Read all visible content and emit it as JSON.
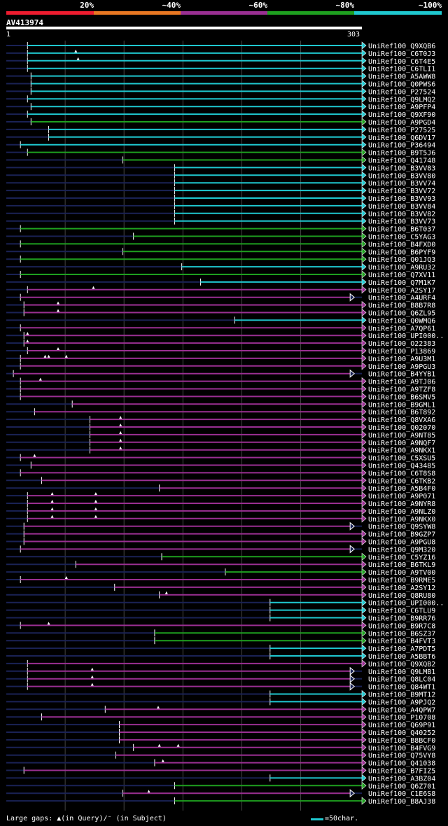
{
  "legend": {
    "bins": [
      {
        "label": "20%",
        "color": "#ee1c2f"
      },
      {
        "label": "~40%",
        "color": "#e87722"
      },
      {
        "label": "~60%",
        "color": "#9a2f92"
      },
      {
        "label": "~80%",
        "color": "#1ea01f"
      },
      {
        "label": "~100%",
        "color": "#1fc8d0"
      }
    ]
  },
  "query": {
    "id": "AV413974",
    "start": "1",
    "end": "303",
    "length": 303
  },
  "colors": {
    "cyan": "#1fc8d0",
    "green": "#1ea01f",
    "purple": "#9a2f92",
    "navy": "#1a2255",
    "grid": "#444444"
  },
  "chart_data": {
    "type": "alignment",
    "x_units": "query position (aa)",
    "xlim": [
      1,
      303
    ],
    "rows": [
      {
        "name": "UniRef100_Q9XQB6",
        "color": "cyan",
        "start": 19,
        "end": 303,
        "arrow": "right"
      },
      {
        "name": "UniRef100_C6T0J3",
        "color": "cyan",
        "start": 19,
        "end": 303,
        "arrow": "right",
        "marks": [
          60
        ]
      },
      {
        "name": "UniRef100_C6T4E5",
        "color": "cyan",
        "start": 19,
        "end": 303,
        "arrow": "right",
        "marks": [
          62
        ]
      },
      {
        "name": "UniRef100_C6TLI1",
        "color": "cyan",
        "start": 19,
        "end": 303,
        "arrow": "right"
      },
      {
        "name": "UniRef100_A5AWW8",
        "color": "cyan",
        "start": 22,
        "end": 303,
        "arrow": "right"
      },
      {
        "name": "UniRef100_Q0PWS6",
        "color": "cyan",
        "start": 22,
        "end": 303,
        "arrow": "right"
      },
      {
        "name": "UniRef100_P27524",
        "color": "cyan",
        "start": 22,
        "end": 303,
        "arrow": "right"
      },
      {
        "name": "UniRef100_Q9LMQ2",
        "color": "cyan",
        "start": 19,
        "end": 303,
        "arrow": "right"
      },
      {
        "name": "UniRef100_A9PFP4",
        "color": "cyan",
        "start": 22,
        "end": 303,
        "arrow": "right"
      },
      {
        "name": "UniRef100_Q9XF90",
        "color": "cyan",
        "start": 19,
        "end": 303,
        "arrow": "right"
      },
      {
        "name": "UniRef100_A9PGD4",
        "color": "green",
        "start": 22,
        "end": 303,
        "arrow": "right"
      },
      {
        "name": "UniRef100_P27525",
        "color": "cyan",
        "start": 37,
        "end": 303,
        "arrow": "right"
      },
      {
        "name": "UniRef100_Q6DV17",
        "color": "cyan",
        "start": 37,
        "end": 303,
        "arrow": "right"
      },
      {
        "name": "UniRef100_P36494",
        "color": "cyan",
        "start": 13,
        "end": 303,
        "arrow": "right"
      },
      {
        "name": "UniRef100_B9T5J6",
        "color": "green",
        "start": 19,
        "end": 303,
        "arrow": "right"
      },
      {
        "name": "UniRef100_Q41748",
        "color": "green",
        "start": 100,
        "end": 303,
        "arrow": "right"
      },
      {
        "name": "UniRef100_B3VV83",
        "color": "cyan",
        "start": 144,
        "end": 303,
        "arrow": "right"
      },
      {
        "name": "UniRef100_B3VV80",
        "color": "cyan",
        "start": 144,
        "end": 303,
        "arrow": "right"
      },
      {
        "name": "UniRef100_B3VV74",
        "color": "cyan",
        "start": 144,
        "end": 303,
        "arrow": "right"
      },
      {
        "name": "UniRef100_B3VV72",
        "color": "cyan",
        "start": 144,
        "end": 303,
        "arrow": "right"
      },
      {
        "name": "UniRef100_B3VV93",
        "color": "cyan",
        "start": 144,
        "end": 303,
        "arrow": "right"
      },
      {
        "name": "UniRef100_B3VV84",
        "color": "cyan",
        "start": 144,
        "end": 303,
        "arrow": "right"
      },
      {
        "name": "UniRef100_B3VV82",
        "color": "cyan",
        "start": 144,
        "end": 303,
        "arrow": "right"
      },
      {
        "name": "UniRef100_B3VV73",
        "color": "cyan",
        "start": 144,
        "end": 303,
        "arrow": "right"
      },
      {
        "name": "UniRef100_B6T037",
        "color": "green",
        "start": 13,
        "end": 303,
        "arrow": "right"
      },
      {
        "name": "UniRef100_C5YAG3",
        "color": "green",
        "start": 109,
        "end": 303,
        "arrow": "right"
      },
      {
        "name": "UniRef100_B4FXD0",
        "color": "green",
        "start": 13,
        "end": 303,
        "arrow": "right"
      },
      {
        "name": "UniRef100_B6PYF9",
        "color": "green",
        "start": 100,
        "end": 303,
        "arrow": "right"
      },
      {
        "name": "UniRef100_Q01JQ3",
        "color": "green",
        "start": 13,
        "end": 303,
        "arrow": "right"
      },
      {
        "name": "UniRef100_A9RU32",
        "color": "cyan",
        "start": 150,
        "end": 303,
        "arrow": "right"
      },
      {
        "name": "UniRef100_Q7XV11",
        "color": "green",
        "start": 13,
        "end": 303,
        "arrow": "right"
      },
      {
        "name": "UniRef100_Q7M1K7",
        "color": "cyan",
        "start": 166,
        "end": 303,
        "arrow": "right"
      },
      {
        "name": "UniRef100_A2SY17",
        "color": "purple",
        "start": 19,
        "end": 303,
        "arrow": "right",
        "marks": [
          75
        ]
      },
      {
        "name": "UniRef100_A4URF4",
        "color": "purple",
        "start": 13,
        "end": 293,
        "arrow": "right-open"
      },
      {
        "name": "UniRef100_B8B7R8",
        "color": "purple",
        "start": 16,
        "end": 303,
        "arrow": "right",
        "marks": [
          45
        ]
      },
      {
        "name": "UniRef100_Q6ZL95",
        "color": "purple",
        "start": 16,
        "end": 303,
        "arrow": "right",
        "marks": [
          45
        ]
      },
      {
        "name": "UniRef100_Q0WMQ6",
        "color": "cyan",
        "start": 195,
        "end": 303,
        "arrow": "right"
      },
      {
        "name": "UniRef100_A7QP61",
        "color": "purple",
        "start": 13,
        "end": 303,
        "arrow": "right"
      },
      {
        "name": "UniRef100_UPI000..",
        "color": "purple",
        "start": 16,
        "end": 303,
        "arrow": "right",
        "marks": [
          19
        ]
      },
      {
        "name": "UniRef100_O22383",
        "color": "purple",
        "start": 16,
        "end": 303,
        "arrow": "right",
        "marks": [
          19
        ]
      },
      {
        "name": "UniRef100_P13869",
        "color": "purple",
        "start": 19,
        "end": 303,
        "arrow": "right",
        "marks": [
          45
        ]
      },
      {
        "name": "UniRef100_A9U3M1",
        "color": "purple",
        "start": 13,
        "end": 303,
        "arrow": "right",
        "marks": [
          34,
          37,
          52
        ]
      },
      {
        "name": "UniRef100_A9PGU3",
        "color": "purple",
        "start": 13,
        "end": 303,
        "arrow": "right"
      },
      {
        "name": "UniRef100_B4YYB1",
        "color": "purple",
        "start": 7,
        "end": 293,
        "arrow": "right-open"
      },
      {
        "name": "UniRef100_A9TJ06",
        "color": "purple",
        "start": 13,
        "end": 303,
        "arrow": "right",
        "marks": [
          30
        ]
      },
      {
        "name": "UniRef100_A9TZF8",
        "color": "purple",
        "start": 13,
        "end": 303,
        "arrow": "right"
      },
      {
        "name": "UniRef100_B6SMV5",
        "color": "purple",
        "start": 13,
        "end": 303,
        "arrow": "right"
      },
      {
        "name": "UniRef100_B9GML1",
        "color": "purple",
        "start": 57,
        "end": 303,
        "arrow": "right"
      },
      {
        "name": "UniRef100_B6T892",
        "color": "purple",
        "start": 25,
        "end": 303,
        "arrow": "right"
      },
      {
        "name": "UniRef100_Q8VXA6",
        "color": "purple",
        "start": 72,
        "end": 303,
        "arrow": "right",
        "marks": [
          98
        ]
      },
      {
        "name": "UniRef100_Q02070",
        "color": "purple",
        "start": 72,
        "end": 303,
        "arrow": "right",
        "marks": [
          98
        ]
      },
      {
        "name": "UniRef100_A9NT85",
        "color": "purple",
        "start": 72,
        "end": 303,
        "arrow": "right",
        "marks": [
          98
        ]
      },
      {
        "name": "UniRef100_A9NQF7",
        "color": "purple",
        "start": 72,
        "end": 303,
        "arrow": "right",
        "marks": [
          98
        ]
      },
      {
        "name": "UniRef100_A9NKX1",
        "color": "purple",
        "start": 72,
        "end": 303,
        "arrow": "right",
        "marks": [
          98
        ]
      },
      {
        "name": "UniRef100_C5XSU5",
        "color": "purple",
        "start": 13,
        "end": 303,
        "arrow": "right",
        "marks": [
          25
        ]
      },
      {
        "name": "UniRef100_Q43485",
        "color": "purple",
        "start": 22,
        "end": 303,
        "arrow": "right"
      },
      {
        "name": "UniRef100_C6T8S8",
        "color": "purple",
        "start": 13,
        "end": 303,
        "arrow": "right"
      },
      {
        "name": "UniRef100_C6TKB2",
        "color": "purple",
        "start": 31,
        "end": 303,
        "arrow": "right"
      },
      {
        "name": "UniRef100_A5B4F0",
        "color": "purple",
        "start": 131,
        "end": 303,
        "arrow": "right"
      },
      {
        "name": "UniRef100_A9P071",
        "color": "purple",
        "start": 19,
        "end": 303,
        "arrow": "right",
        "marks": [
          40,
          77
        ]
      },
      {
        "name": "UniRef100_A9NYR8",
        "color": "purple",
        "start": 19,
        "end": 303,
        "arrow": "right",
        "marks": [
          40,
          77
        ]
      },
      {
        "name": "UniRef100_A9NLZ0",
        "color": "purple",
        "start": 19,
        "end": 303,
        "arrow": "right",
        "marks": [
          40,
          77
        ]
      },
      {
        "name": "UniRef100_A9NKX0",
        "color": "purple",
        "start": 19,
        "end": 303,
        "arrow": "right",
        "marks": [
          40,
          77
        ]
      },
      {
        "name": "UniRef100_Q9SYW8",
        "color": "purple",
        "start": 16,
        "end": 293,
        "arrow": "right-open"
      },
      {
        "name": "UniRef100_B9GZP7",
        "color": "purple",
        "start": 16,
        "end": 303,
        "arrow": "right"
      },
      {
        "name": "UniRef100_A9PGU8",
        "color": "purple",
        "start": 16,
        "end": 303,
        "arrow": "right"
      },
      {
        "name": "UniRef100_Q9M320",
        "color": "purple",
        "start": 13,
        "end": 293,
        "arrow": "right-open"
      },
      {
        "name": "UniRef100_C5YZ16",
        "color": "green",
        "start": 133,
        "end": 303,
        "arrow": "right"
      },
      {
        "name": "UniRef100_B6TKL9",
        "color": "purple",
        "start": 60,
        "end": 303,
        "arrow": "right"
      },
      {
        "name": "UniRef100_A9TV00",
        "color": "green",
        "start": 187,
        "end": 303,
        "arrow": "right"
      },
      {
        "name": "UniRef100_B9RME5",
        "color": "purple",
        "start": 13,
        "end": 303,
        "arrow": "right",
        "marks": [
          52
        ]
      },
      {
        "name": "UniRef100_A2SY12",
        "color": "purple",
        "start": 93,
        "end": 303,
        "arrow": "right"
      },
      {
        "name": "UniRef100_Q8RU80",
        "color": "purple",
        "start": 131,
        "end": 303,
        "arrow": "right",
        "marks": [
          137
        ]
      },
      {
        "name": "UniRef100_UPI000..",
        "color": "cyan",
        "start": 225,
        "end": 303,
        "arrow": "right"
      },
      {
        "name": "UniRef100_C6TLU9",
        "color": "cyan",
        "start": 225,
        "end": 303,
        "arrow": "right"
      },
      {
        "name": "UniRef100_B9RR76",
        "color": "cyan",
        "start": 225,
        "end": 303,
        "arrow": "right"
      },
      {
        "name": "UniRef100_B9R7C8",
        "color": "purple",
        "start": 13,
        "end": 303,
        "arrow": "right",
        "marks": [
          37
        ]
      },
      {
        "name": "UniRef100_B6SZ37",
        "color": "green",
        "start": 127,
        "end": 303,
        "arrow": "right"
      },
      {
        "name": "UniRef100_B4FVT3",
        "color": "green",
        "start": 127,
        "end": 303,
        "arrow": "right"
      },
      {
        "name": "UniRef100_A7PDT5",
        "color": "cyan",
        "start": 225,
        "end": 303,
        "arrow": "right"
      },
      {
        "name": "UniRef100_A5BBT6",
        "color": "cyan",
        "start": 225,
        "end": 303,
        "arrow": "right"
      },
      {
        "name": "UniRef100_Q9XQB2",
        "color": "purple",
        "start": 19,
        "end": 303,
        "arrow": "right"
      },
      {
        "name": "UniRef100_Q9LMB1",
        "color": "purple",
        "start": 19,
        "end": 293,
        "arrow": "right-open",
        "marks": [
          74
        ]
      },
      {
        "name": "UniRef100_Q8LC04",
        "color": "purple",
        "start": 19,
        "end": 293,
        "arrow": "right-open",
        "marks": [
          74
        ]
      },
      {
        "name": "UniRef100_Q84WT1",
        "color": "purple",
        "start": 19,
        "end": 293,
        "arrow": "right-open",
        "marks": [
          74
        ]
      },
      {
        "name": "UniRef100_B9MT12",
        "color": "cyan",
        "start": 225,
        "end": 303,
        "arrow": "right"
      },
      {
        "name": "UniRef100_A9PJQ2",
        "color": "cyan",
        "start": 225,
        "end": 303,
        "arrow": "right"
      },
      {
        "name": "UniRef100_A4QPW7",
        "color": "purple",
        "start": 85,
        "end": 303,
        "arrow": "right",
        "marks": [
          130
        ]
      },
      {
        "name": "UniRef100_P10708",
        "color": "purple",
        "start": 31,
        "end": 303,
        "arrow": "right"
      },
      {
        "name": "UniRef100_Q69P91",
        "color": "purple",
        "start": 97,
        "end": 303,
        "arrow": "right"
      },
      {
        "name": "UniRef100_Q40252",
        "color": "purple",
        "start": 97,
        "end": 303,
        "arrow": "right"
      },
      {
        "name": "UniRef100_B8BCF0",
        "color": "purple",
        "start": 97,
        "end": 303,
        "arrow": "right"
      },
      {
        "name": "UniRef100_B4FVG9",
        "color": "purple",
        "start": 109,
        "end": 303,
        "arrow": "right",
        "marks": [
          131,
          147
        ]
      },
      {
        "name": "UniRef100_Q75VY8",
        "color": "purple",
        "start": 94,
        "end": 303,
        "arrow": "right"
      },
      {
        "name": "UniRef100_Q41038",
        "color": "purple",
        "start": 127,
        "end": 303,
        "arrow": "right",
        "marks": [
          134
        ]
      },
      {
        "name": "UniRef100_B7FIZ5",
        "color": "purple",
        "start": 16,
        "end": 303,
        "arrow": "right"
      },
      {
        "name": "UniRef100_A3BZ04",
        "color": "cyan",
        "start": 225,
        "end": 303,
        "arrow": "right"
      },
      {
        "name": "UniRef100_Q6Z701",
        "color": "green",
        "start": 144,
        "end": 303,
        "arrow": "right"
      },
      {
        "name": "UniRef100_C1E6S8",
        "color": "purple",
        "start": 100,
        "end": 293,
        "arrow": "right-open",
        "marks": [
          122
        ]
      },
      {
        "name": "UniRef100_B8AJ38",
        "color": "green",
        "start": 144,
        "end": 303,
        "arrow": "right"
      }
    ]
  },
  "footer": {
    "gaps_text": "Large gaps: ▲(in Query)/⁻ (in Subject)",
    "scale_text": "=50char."
  }
}
